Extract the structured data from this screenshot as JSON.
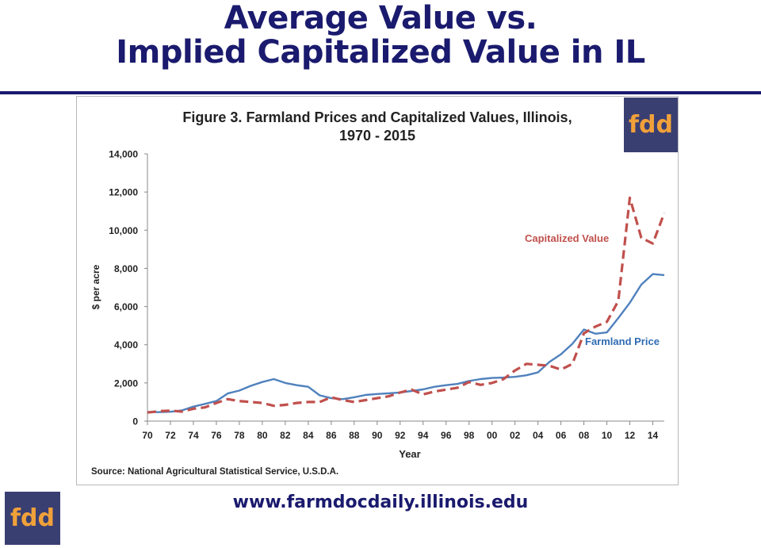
{
  "slide": {
    "title_line1": "Average Value vs.",
    "title_line2": "Implied Capitalized Value in IL",
    "logo_text": "fdd",
    "website": "www.farmdocdaily.illinois.edu"
  },
  "colors": {
    "title": "#1a1a6e",
    "logo_bg": "#3a3f72",
    "logo_text": "#f1a13a"
  },
  "chart_data": {
    "type": "line",
    "title_line1": "Figure 3.  Farmland Prices and Capitalized Values, Illinois,",
    "title_line2": "1970 - 2015",
    "xlabel": "Year",
    "ylabel": "$ per acre",
    "source": "Source:  National Agricultural Statistical Service, U.S.D.A.",
    "ylim": [
      0,
      14000
    ],
    "xlim": [
      1970,
      2015
    ],
    "yticks": [
      "0",
      "2,000",
      "4,000",
      "6,000",
      "8,000",
      "10,000",
      "12,000",
      "14,000"
    ],
    "xticks": [
      "70",
      "72",
      "74",
      "76",
      "78",
      "80",
      "82",
      "84",
      "86",
      "88",
      "90",
      "92",
      "94",
      "96",
      "98",
      "00",
      "02",
      "04",
      "06",
      "08",
      "10",
      "12",
      "14"
    ],
    "grid": false,
    "legend": "inline labels",
    "x": [
      1970,
      1971,
      1972,
      1973,
      1974,
      1975,
      1976,
      1977,
      1978,
      1979,
      1980,
      1981,
      1982,
      1983,
      1984,
      1985,
      1986,
      1987,
      1988,
      1989,
      1990,
      1991,
      1992,
      1993,
      1994,
      1995,
      1996,
      1997,
      1998,
      1999,
      2000,
      2001,
      2002,
      2003,
      2004,
      2005,
      2006,
      2007,
      2008,
      2009,
      2010,
      2011,
      2012,
      2013,
      2014,
      2015
    ],
    "series": [
      {
        "name": "Farmland Price",
        "color": "#4f81bd",
        "dash": false,
        "values": [
          480,
          470,
          490,
          560,
          760,
          900,
          1050,
          1450,
          1600,
          1850,
          2050,
          2200,
          2000,
          1880,
          1800,
          1350,
          1200,
          1150,
          1250,
          1370,
          1420,
          1460,
          1500,
          1580,
          1660,
          1800,
          1880,
          1950,
          2100,
          2200,
          2260,
          2280,
          2320,
          2400,
          2550,
          3100,
          3500,
          4050,
          4800,
          4580,
          4650,
          5400,
          6200,
          7150,
          7700,
          7650
        ]
      },
      {
        "name": "Capitalized Value",
        "color": "#c0504d",
        "dash": true,
        "values": [
          450,
          520,
          550,
          500,
          650,
          720,
          950,
          1150,
          1050,
          1000,
          950,
          800,
          850,
          950,
          1000,
          1000,
          1250,
          1100,
          1000,
          1100,
          1200,
          1300,
          1500,
          1650,
          1400,
          1550,
          1650,
          1750,
          2050,
          1900,
          2000,
          2200,
          2650,
          3000,
          2950,
          2900,
          2700,
          3000,
          4600,
          4950,
          5200,
          6300,
          11700,
          9600,
          9300,
          10900
        ]
      }
    ]
  }
}
